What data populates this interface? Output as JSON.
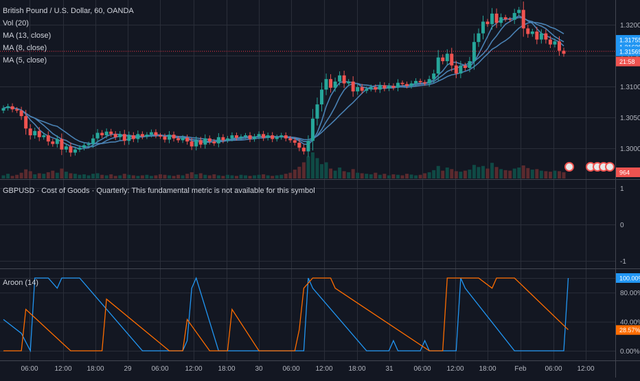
{
  "legend": {
    "title": "British Pound / U.S. Dollar, 60, OANDA",
    "vol": "Vol (20)",
    "ma13": "MA (13, close)",
    "ma8": "MA (8, close)",
    "ma5": "MA (5, close)",
    "fundamental": "GBPUSD · Cost of Goods · Quarterly: This fundamental metric is not available for this symbol",
    "aroon": "Aroon (14)"
  },
  "colors": {
    "background": "#131722",
    "grid": "#2a2e39",
    "up": "#26a69a",
    "down": "#ef5350",
    "ma": "#4a82b4",
    "aroon_up": "#2196f3",
    "aroon_down": "#ff6d00",
    "current_price_line": "#f23645"
  },
  "chart_data": [
    {
      "type": "candlestick",
      "name": "price",
      "y_ticks": [
        "1.32000",
        "1.31500",
        "1.31000",
        "1.30500",
        "1.30000"
      ],
      "ylim": [
        1.2965,
        1.3232
      ],
      "x_ticks": [
        "06:00",
        "12:00",
        "18:00",
        "29",
        "06:00",
        "12:00",
        "18:00",
        "30",
        "06:00",
        "12:00",
        "18:00",
        "31",
        "06:00",
        "12:00",
        "18:00",
        "Feb",
        "06:00",
        "12:00"
      ],
      "price_labels": [
        {
          "text": "1.31755",
          "value": 1.31755,
          "color": "#2196f3"
        },
        {
          "text": "1.31639",
          "value": 1.31639,
          "color": "#2196f3"
        },
        {
          "text": "1.31569",
          "value": 1.31569,
          "color": "#2196f3"
        },
        {
          "text": "21:58",
          "value": 1.31405,
          "color": "#ef5350"
        }
      ],
      "volume_label": "964",
      "close": [
        1.3065,
        1.3068,
        1.3063,
        1.3061,
        1.3052,
        1.3032,
        1.3021,
        1.3028,
        1.3018,
        1.3021,
        1.3011,
        1.3007,
        1.3015,
        1.2998,
        1.3003,
        1.2993,
        1.2998,
        1.3001,
        1.3005,
        1.3007,
        1.3016,
        1.3025,
        1.3021,
        1.3027,
        1.3023,
        1.3018,
        1.3023,
        1.3012,
        1.3021,
        1.3015,
        1.3023,
        1.3019,
        1.3022,
        1.3026,
        1.3021,
        1.3019,
        1.3014,
        1.3022,
        1.3016,
        1.3013,
        1.3017,
        1.3011,
        1.3003,
        1.3013,
        1.3006,
        1.3016,
        1.3011,
        1.3008,
        1.3018,
        1.3013,
        1.3016,
        1.3021,
        1.3017,
        1.3019,
        1.3021,
        1.3015,
        1.3019,
        1.3023,
        1.3017,
        1.3021,
        1.3015,
        1.3018,
        1.3021,
        1.3016,
        1.3013,
        1.3009,
        1.3001,
        1.2995,
        1.3012,
        1.3048,
        1.3071,
        1.3095,
        1.3112,
        1.3098,
        1.3108,
        1.3118,
        1.3105,
        1.3108,
        1.3092,
        1.3099,
        1.3093,
        1.3096,
        1.3099,
        1.3095,
        1.3102,
        1.3097,
        1.3101,
        1.3098,
        1.3106,
        1.3104,
        1.3101,
        1.3105,
        1.3109,
        1.3107,
        1.3105,
        1.3112,
        1.3121,
        1.3147,
        1.3141,
        1.3153,
        1.3134,
        1.3121,
        1.3134,
        1.313,
        1.3141,
        1.3172,
        1.3186,
        1.3205,
        1.3201,
        1.3218,
        1.3203,
        1.3212,
        1.3209,
        1.3208,
        1.3219,
        1.3224,
        1.3194,
        1.3185,
        1.3189,
        1.3176,
        1.3186,
        1.3176,
        1.3168,
        1.3173,
        1.3158,
        1.3153
      ],
      "volume_relative": [
        0.12,
        0.18,
        0.1,
        0.14,
        0.22,
        0.35,
        0.28,
        0.16,
        0.2,
        0.18,
        0.24,
        0.3,
        0.22,
        0.38,
        0.26,
        0.2,
        0.18,
        0.14,
        0.16,
        0.12,
        0.18,
        0.2,
        0.14,
        0.12,
        0.16,
        0.1,
        0.12,
        0.18,
        0.14,
        0.12,
        0.1,
        0.12,
        0.14,
        0.1,
        0.12,
        0.16,
        0.14,
        0.12,
        0.1,
        0.14,
        0.12,
        0.18,
        0.24,
        0.16,
        0.2,
        0.14,
        0.12,
        0.16,
        0.12,
        0.1,
        0.14,
        0.12,
        0.1,
        0.14,
        0.12,
        0.1,
        0.12,
        0.14,
        0.16,
        0.12,
        0.1,
        0.12,
        0.14,
        0.18,
        0.22,
        0.34,
        0.45,
        0.62,
        0.85,
        1.0,
        0.78,
        0.55,
        0.62,
        0.38,
        0.3,
        0.42,
        0.28,
        0.24,
        0.36,
        0.22,
        0.2,
        0.18,
        0.16,
        0.22,
        0.14,
        0.18,
        0.12,
        0.16,
        0.14,
        0.12,
        0.18,
        0.15,
        0.12,
        0.14,
        0.2,
        0.24,
        0.32,
        0.48,
        0.3,
        0.42,
        0.36,
        0.28,
        0.26,
        0.3,
        0.34,
        0.52,
        0.44,
        0.48,
        0.38,
        0.6,
        0.44,
        0.36,
        0.32,
        0.3,
        0.38,
        0.42,
        0.5,
        0.4,
        0.34,
        0.36,
        0.3,
        0.28,
        0.26,
        0.3,
        0.28,
        0.24
      ]
    },
    {
      "type": "line",
      "name": "fundamental",
      "y_ticks": [
        "1",
        "0",
        "-1"
      ],
      "ylim": [
        -1,
        1
      ]
    },
    {
      "type": "line",
      "name": "aroon",
      "y_ticks": [
        "100.00%",
        "80.00%",
        "40.00%",
        "0.00%"
      ],
      "ylim": [
        0,
        100
      ],
      "value_labels": [
        {
          "text": "100.00%",
          "value": 100,
          "color": "#2196f3"
        },
        {
          "text": "28.57%",
          "value": 28.57,
          "color": "#ff6d00"
        }
      ],
      "series": [
        {
          "color": "#2196f3",
          "points": [
            [
              0,
              43
            ],
            [
              4,
              24
            ],
            [
              6,
              0
            ],
            [
              7,
              100
            ],
            [
              10,
              100
            ],
            [
              12,
              86
            ],
            [
              13,
              100
            ],
            [
              17,
              100
            ],
            [
              31,
              0
            ],
            [
              40,
              0
            ],
            [
              41,
              14
            ],
            [
              42,
              86
            ],
            [
              43,
              100
            ],
            [
              48,
              0
            ],
            [
              67,
              0
            ],
            [
              68,
              100
            ],
            [
              69,
              86
            ],
            [
              81,
              0
            ],
            [
              86,
              0
            ],
            [
              87,
              14
            ],
            [
              88,
              0
            ],
            [
              93,
              0
            ],
            [
              94,
              14
            ],
            [
              95,
              0
            ],
            [
              101,
              0
            ],
            [
              102,
              100
            ],
            [
              103,
              86
            ],
            [
              114,
              0
            ],
            [
              125,
              0
            ],
            [
              126,
              100
            ]
          ]
        },
        {
          "color": "#ff6d00",
          "points": [
            [
              0,
              0
            ],
            [
              4,
              0
            ],
            [
              5,
              57
            ],
            [
              15,
              0
            ],
            [
              22,
              0
            ],
            [
              23,
              71
            ],
            [
              37,
              0
            ],
            [
              40,
              0
            ],
            [
              41,
              43
            ],
            [
              46,
              0
            ],
            [
              50,
              0
            ],
            [
              51,
              57
            ],
            [
              57,
              0
            ],
            [
              65,
              0
            ],
            [
              66,
              29
            ],
            [
              67,
              86
            ],
            [
              69,
              100
            ],
            [
              73,
              100
            ],
            [
              74,
              86
            ],
            [
              95,
              0
            ],
            [
              98,
              0
            ],
            [
              99,
              100
            ],
            [
              106,
              100
            ],
            [
              109,
              86
            ],
            [
              110,
              100
            ],
            [
              114,
              100
            ],
            [
              126,
              29
            ]
          ]
        }
      ]
    }
  ]
}
